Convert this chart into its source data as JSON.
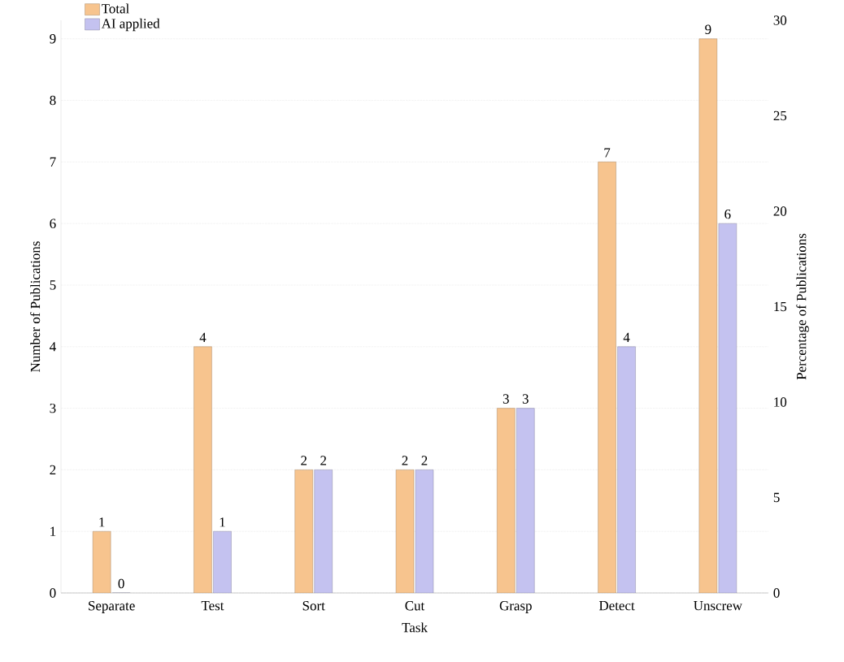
{
  "chart_data": {
    "type": "bar",
    "xlabel": "Task",
    "ylabel": "Number of Publications",
    "y2label": "Percentage of Publications",
    "categories": [
      "Separate",
      "Test",
      "Sort",
      "Cut",
      "Grasp",
      "Detect",
      "Unscrew"
    ],
    "series": [
      {
        "name": "Total",
        "color": "#f7c48e",
        "values": [
          1,
          4,
          2,
          2,
          3,
          7,
          9
        ]
      },
      {
        "name": "AI applied",
        "color": "#c4c2f0",
        "values": [
          0,
          1,
          2,
          2,
          3,
          4,
          6
        ]
      }
    ],
    "ylim": [
      0,
      9.3
    ],
    "yticks": [
      0,
      1,
      2,
      3,
      4,
      5,
      6,
      7,
      8,
      9
    ],
    "y2lim": [
      0,
      30
    ],
    "y2ticks": [
      0,
      5,
      10,
      15,
      20,
      25,
      30
    ],
    "grid": "y",
    "legend": "top left",
    "data_labels": true
  }
}
